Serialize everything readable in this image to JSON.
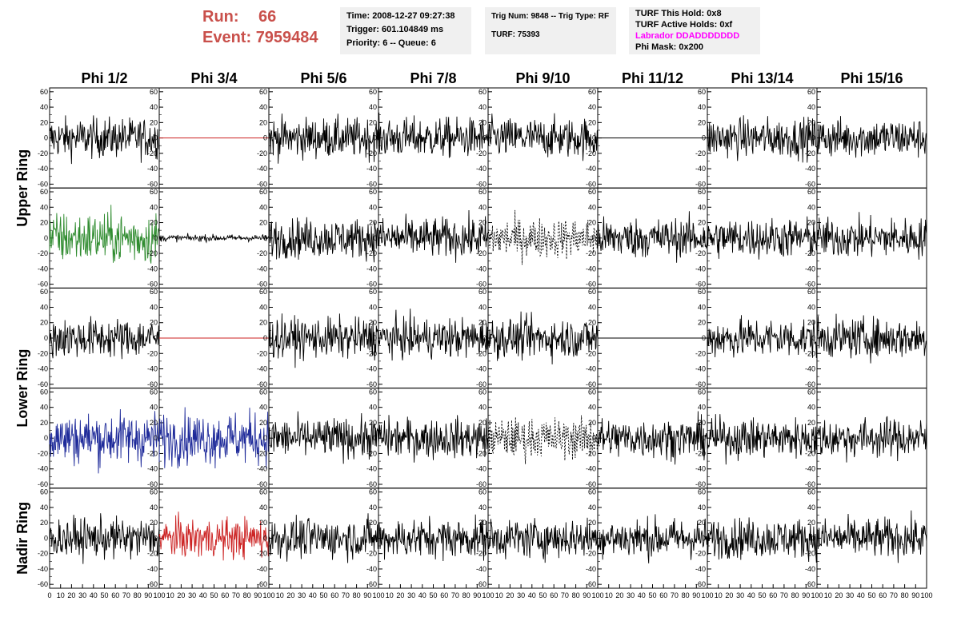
{
  "header": {
    "run_label": "Run:",
    "run_value": "66",
    "event_label": "Event:",
    "event_value": "7959484",
    "time": "Time: 2008-12-27 09:27:38",
    "trigger": "Trigger: 601.104849 ms",
    "priority": "Priority: 6 -- Queue: 6",
    "trig_num": "Trig Num: 9848 -- Trig Type: RF",
    "turf": "TURF: 75393",
    "turf_hold": "TURF This Hold: 0x8",
    "turf_active": "TURF Active Holds: 0xf",
    "labrador": "Labrador DDADDDDDDD",
    "phi_mask": "Phi Mask: 0x200"
  },
  "columns": [
    "Phi 1/2",
    "Phi 3/4",
    "Phi 5/6",
    "Phi 7/8",
    "Phi 9/10",
    "Phi 11/12",
    "Phi 13/14",
    "Phi 15/16"
  ],
  "ring_labels": [
    "Upper Ring",
    "Lower Ring",
    "Nadir Ring"
  ],
  "y_ticks": [
    "60",
    "40",
    "20",
    "0",
    "-20",
    "-40",
    "-60"
  ],
  "x_ticks": [
    "0",
    "10",
    "20",
    "30",
    "40",
    "50",
    "60",
    "70",
    "80",
    "90",
    "100"
  ],
  "colors": {
    "run_text": "#c9504b",
    "info_bg": "#f0f0f0",
    "labrador": "#ff00ff",
    "trace_black": "#000000",
    "trace_green": "#2e8b2e",
    "trace_blue": "#1f2b9a",
    "trace_red": "#cc2222"
  },
  "chart_data": {
    "type": "line",
    "xlim": [
      0,
      100
    ],
    "ylim": [
      -65,
      65
    ],
    "panels": [
      [
        "noise",
        "flat-red",
        "noise",
        "noise",
        "noise",
        "flat-black",
        "noise",
        "noise"
      ],
      [
        "noise-green",
        "low",
        "noise",
        "noise",
        "dashed",
        "noise",
        "noise",
        "noise"
      ],
      [
        "noise",
        "flat-red",
        "noise",
        "noise",
        "noise",
        "flat-black",
        "noise",
        "noise"
      ],
      [
        "noise-blue",
        "noise-blue",
        "noise",
        "noise",
        "dashed",
        "noise",
        "noise",
        "noise"
      ],
      [
        "noise",
        "noise-red",
        "noise",
        "noise",
        "noise",
        "noise",
        "noise",
        "noise"
      ]
    ]
  }
}
